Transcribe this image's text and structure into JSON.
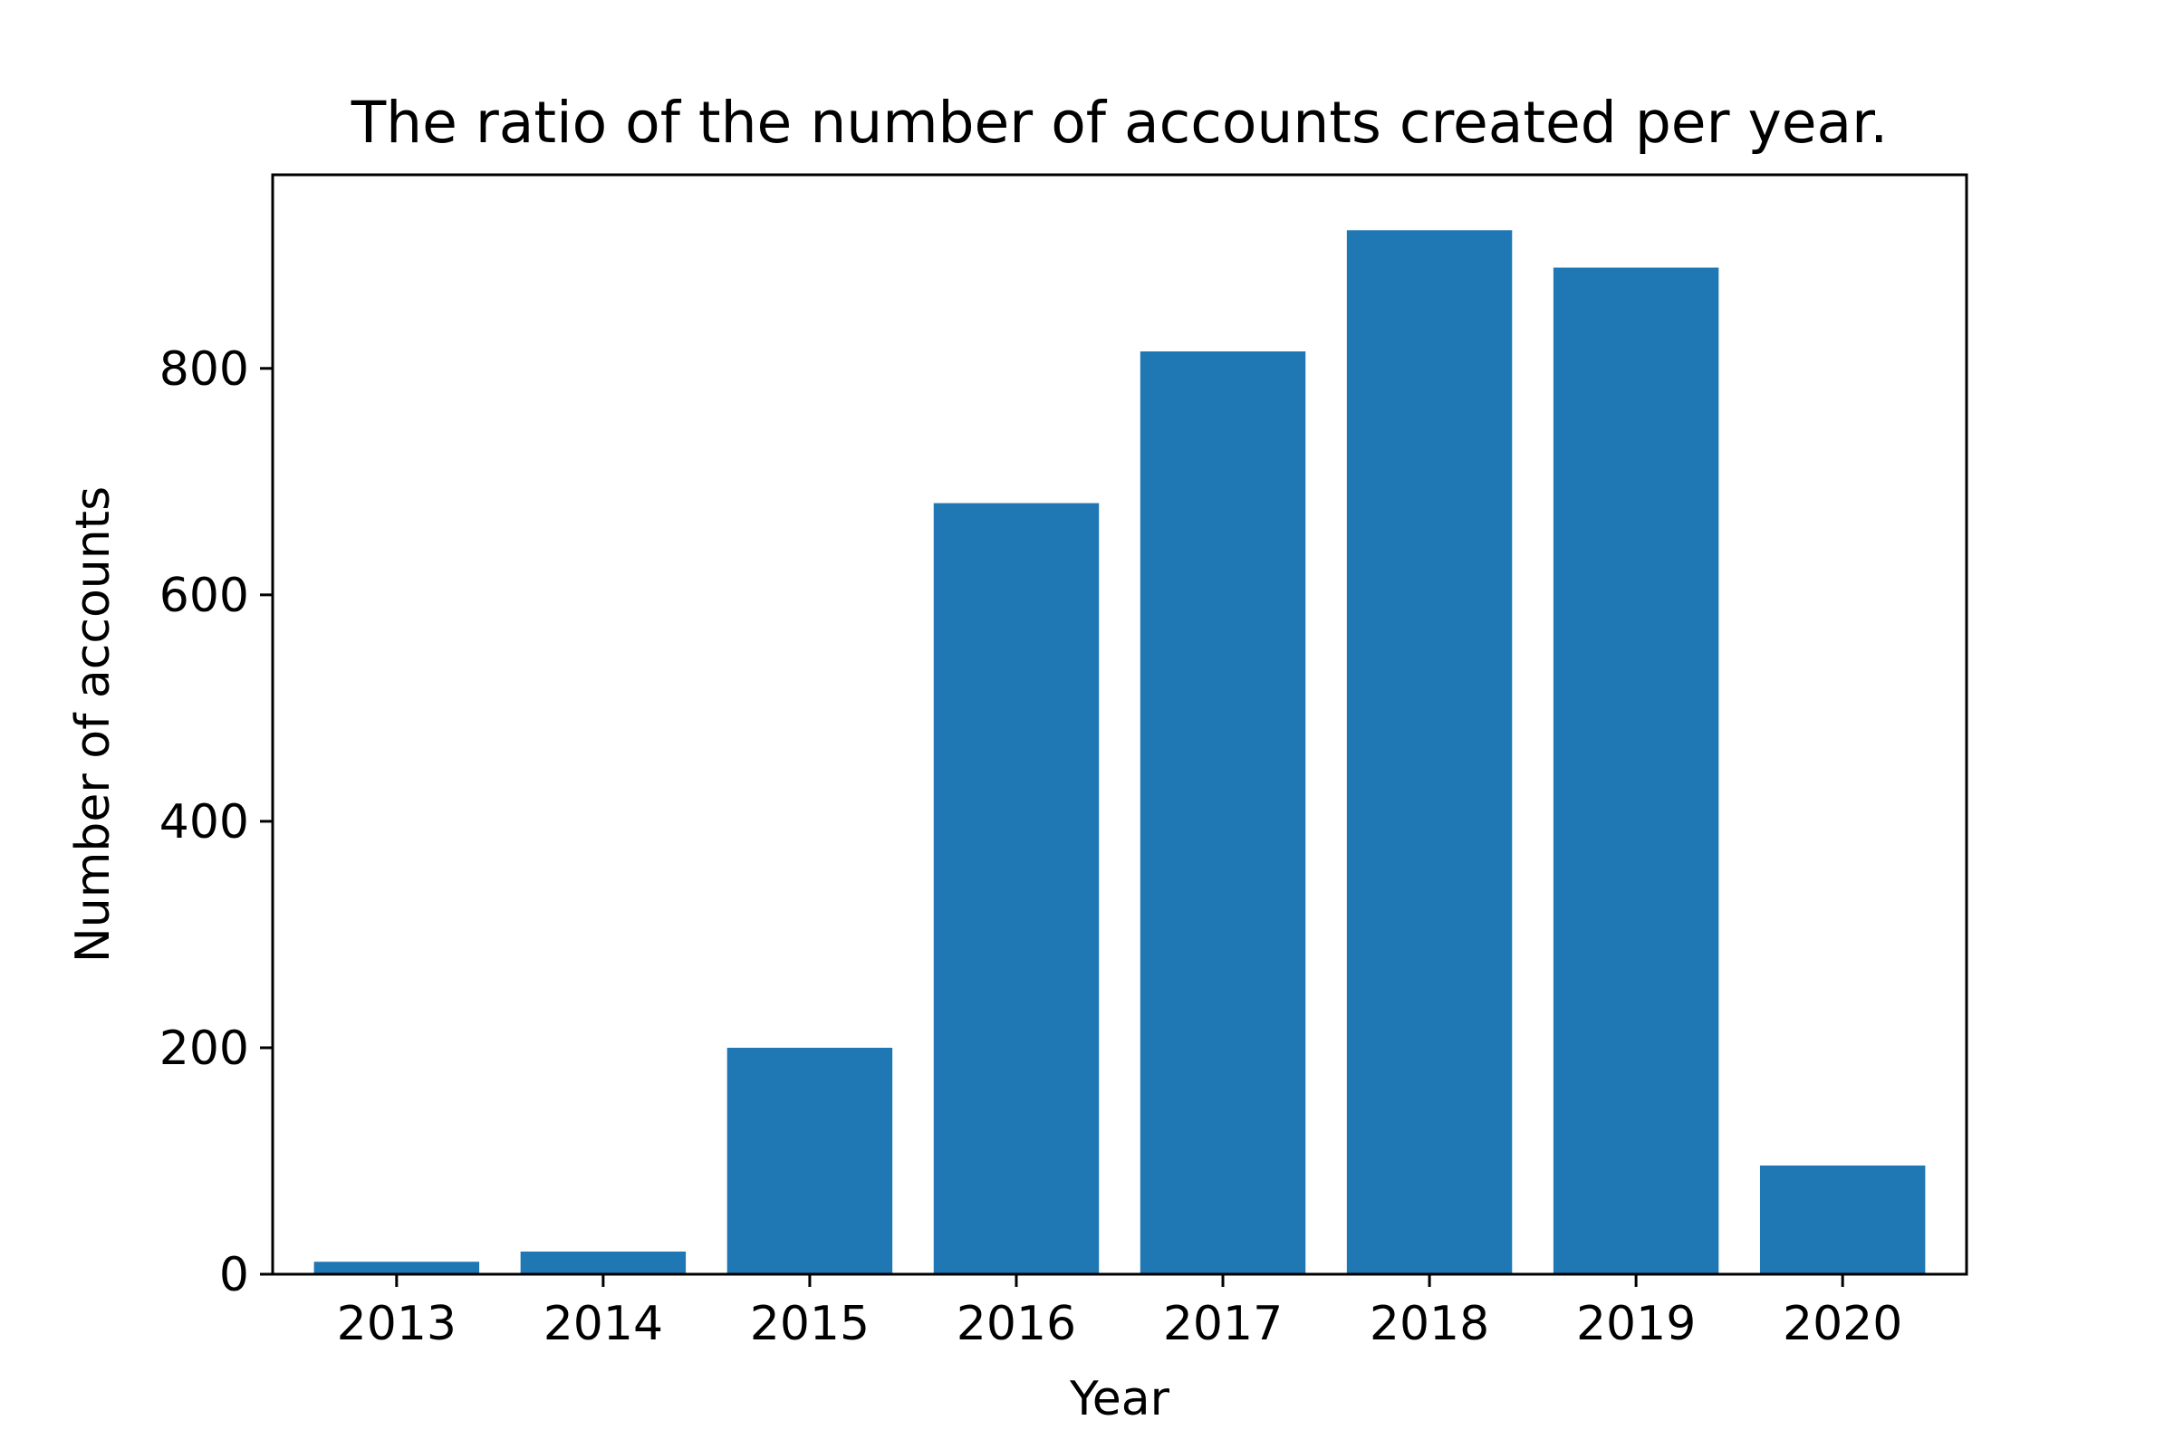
{
  "chart_data": {
    "type": "bar",
    "title": "The ratio of the number of accounts created per year.",
    "xlabel": "Year",
    "ylabel": "Number of accounts",
    "categories": [
      "2013",
      "2014",
      "2015",
      "2016",
      "2017",
      "2018",
      "2019",
      "2020"
    ],
    "values": [
      11,
      20,
      200,
      681,
      815,
      922,
      889,
      96
    ],
    "ylim": [
      0,
      971
    ],
    "yticks": [
      0,
      200,
      400,
      600,
      800
    ],
    "bar_color": "#1f77b4",
    "grid": false,
    "legend": "none"
  }
}
